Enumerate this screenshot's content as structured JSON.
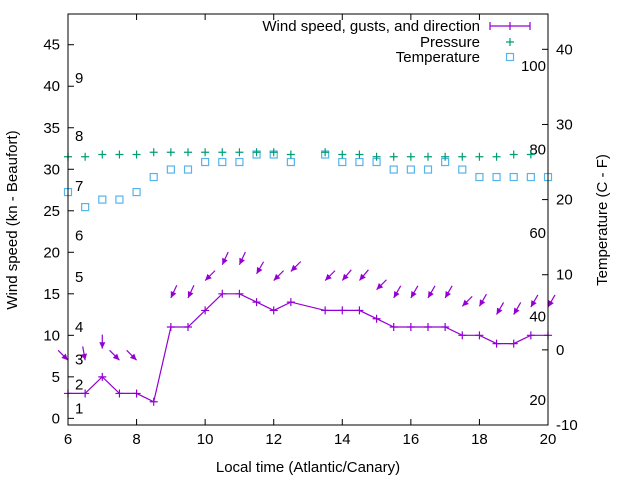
{
  "chart_data": {
    "type": "line",
    "xlabel": "Local time (Atlantic/Canary)",
    "ylabel": "Wind speed (kn - Beaufort)",
    "y2label": "Temperature (C - F)",
    "xlim": [
      6,
      20
    ],
    "ylim": [
      -0.8,
      48.7
    ],
    "y2lim": [
      -10,
      44.7
    ],
    "xticks": [
      6,
      8,
      10,
      12,
      14,
      16,
      18,
      20
    ],
    "yticks": [
      0,
      5,
      10,
      15,
      20,
      25,
      30,
      35,
      40,
      45
    ],
    "y2ticks": [
      -10,
      0,
      10,
      20,
      30,
      40
    ],
    "beaufort_labels": [
      {
        "label": "1",
        "kn": 1.2
      },
      {
        "label": "2",
        "kn": 4.1
      },
      {
        "label": "3",
        "kn": 7.1
      },
      {
        "label": "4",
        "kn": 11
      },
      {
        "label": "5",
        "kn": 17
      },
      {
        "label": "6",
        "kn": 22
      },
      {
        "label": "7",
        "kn": 28
      },
      {
        "label": "8",
        "kn": 34
      },
      {
        "label": "9",
        "kn": 41
      }
    ],
    "fahrenheit_labels": [
      {
        "label": "20",
        "f": 20
      },
      {
        "label": "40",
        "f": 40
      },
      {
        "label": "60",
        "f": 60
      },
      {
        "label": "80",
        "f": 80
      },
      {
        "label": "100",
        "f": 100
      }
    ],
    "legend_position": "top-right",
    "colors": {
      "wind": "#9400D3",
      "pressure": "#009E73",
      "temperature": "#56B4E9"
    },
    "series": [
      {
        "name": "Wind speed, gusts, and direction",
        "x": [
          6,
          6.5,
          7,
          7.5,
          8,
          8.5,
          9,
          9.5,
          10,
          10.5,
          11,
          11.5,
          12,
          12.5,
          13.5,
          14,
          14.5,
          15,
          15.5,
          16,
          16.5,
          17,
          17.5,
          18,
          18.5,
          19,
          19.5,
          20
        ],
        "speed": [
          3,
          3,
          5,
          3,
          3,
          2,
          11,
          11,
          13,
          15,
          15,
          14,
          13,
          14,
          13,
          13,
          13,
          12,
          11,
          11,
          11,
          11,
          10,
          10,
          9,
          9,
          10,
          10
        ],
        "gust": [
          7,
          7,
          8.4,
          7,
          7,
          null,
          14.5,
          14.5,
          16.6,
          18.5,
          18.5,
          17.4,
          16.6,
          17.7,
          16.6,
          16.6,
          16.6,
          15.5,
          14.5,
          14.5,
          14.5,
          14.5,
          13.5,
          13.5,
          12.5,
          12.5,
          13.4,
          13.4
        ],
        "direction_from_deg": [
          315,
          350,
          0,
          315,
          315,
          null,
          25,
          25,
          45,
          25,
          25,
          30,
          45,
          45,
          45,
          40,
          40,
          45,
          30,
          30,
          30,
          30,
          45,
          30,
          30,
          30,
          30,
          30
        ]
      },
      {
        "name": "Pressure",
        "x": [
          6,
          6.5,
          7,
          7.5,
          8,
          8.5,
          9,
          9.5,
          10,
          10.5,
          11,
          11.5,
          12,
          12.5,
          13.5,
          14,
          14.5,
          15,
          15.5,
          16,
          16.5,
          17,
          17.5,
          18,
          18.5,
          19,
          19.5
        ],
        "values_right_axis_scale": [
          25.7,
          25.7,
          26,
          26,
          26,
          26.3,
          26.3,
          26.3,
          26.3,
          26.3,
          26.3,
          26.3,
          26.3,
          26,
          26.3,
          26,
          26,
          25.7,
          25.7,
          25.7,
          25.7,
          25.7,
          25.7,
          25.7,
          25.7,
          26,
          26
        ]
      },
      {
        "name": "Temperature",
        "x": [
          6,
          6.5,
          7,
          7.5,
          8,
          8.5,
          9,
          9.5,
          10,
          10.5,
          11,
          11.5,
          12,
          12.5,
          13.5,
          14,
          14.5,
          15,
          15.5,
          16,
          16.5,
          17,
          17.5,
          18,
          18.5,
          19,
          19.5,
          20
        ],
        "values": [
          21,
          19,
          20,
          20,
          21,
          23,
          24,
          24,
          25,
          25,
          25,
          26,
          26,
          25,
          26,
          25,
          25,
          25,
          24,
          24,
          24,
          25,
          24,
          23,
          23,
          23,
          23,
          23
        ]
      }
    ]
  }
}
